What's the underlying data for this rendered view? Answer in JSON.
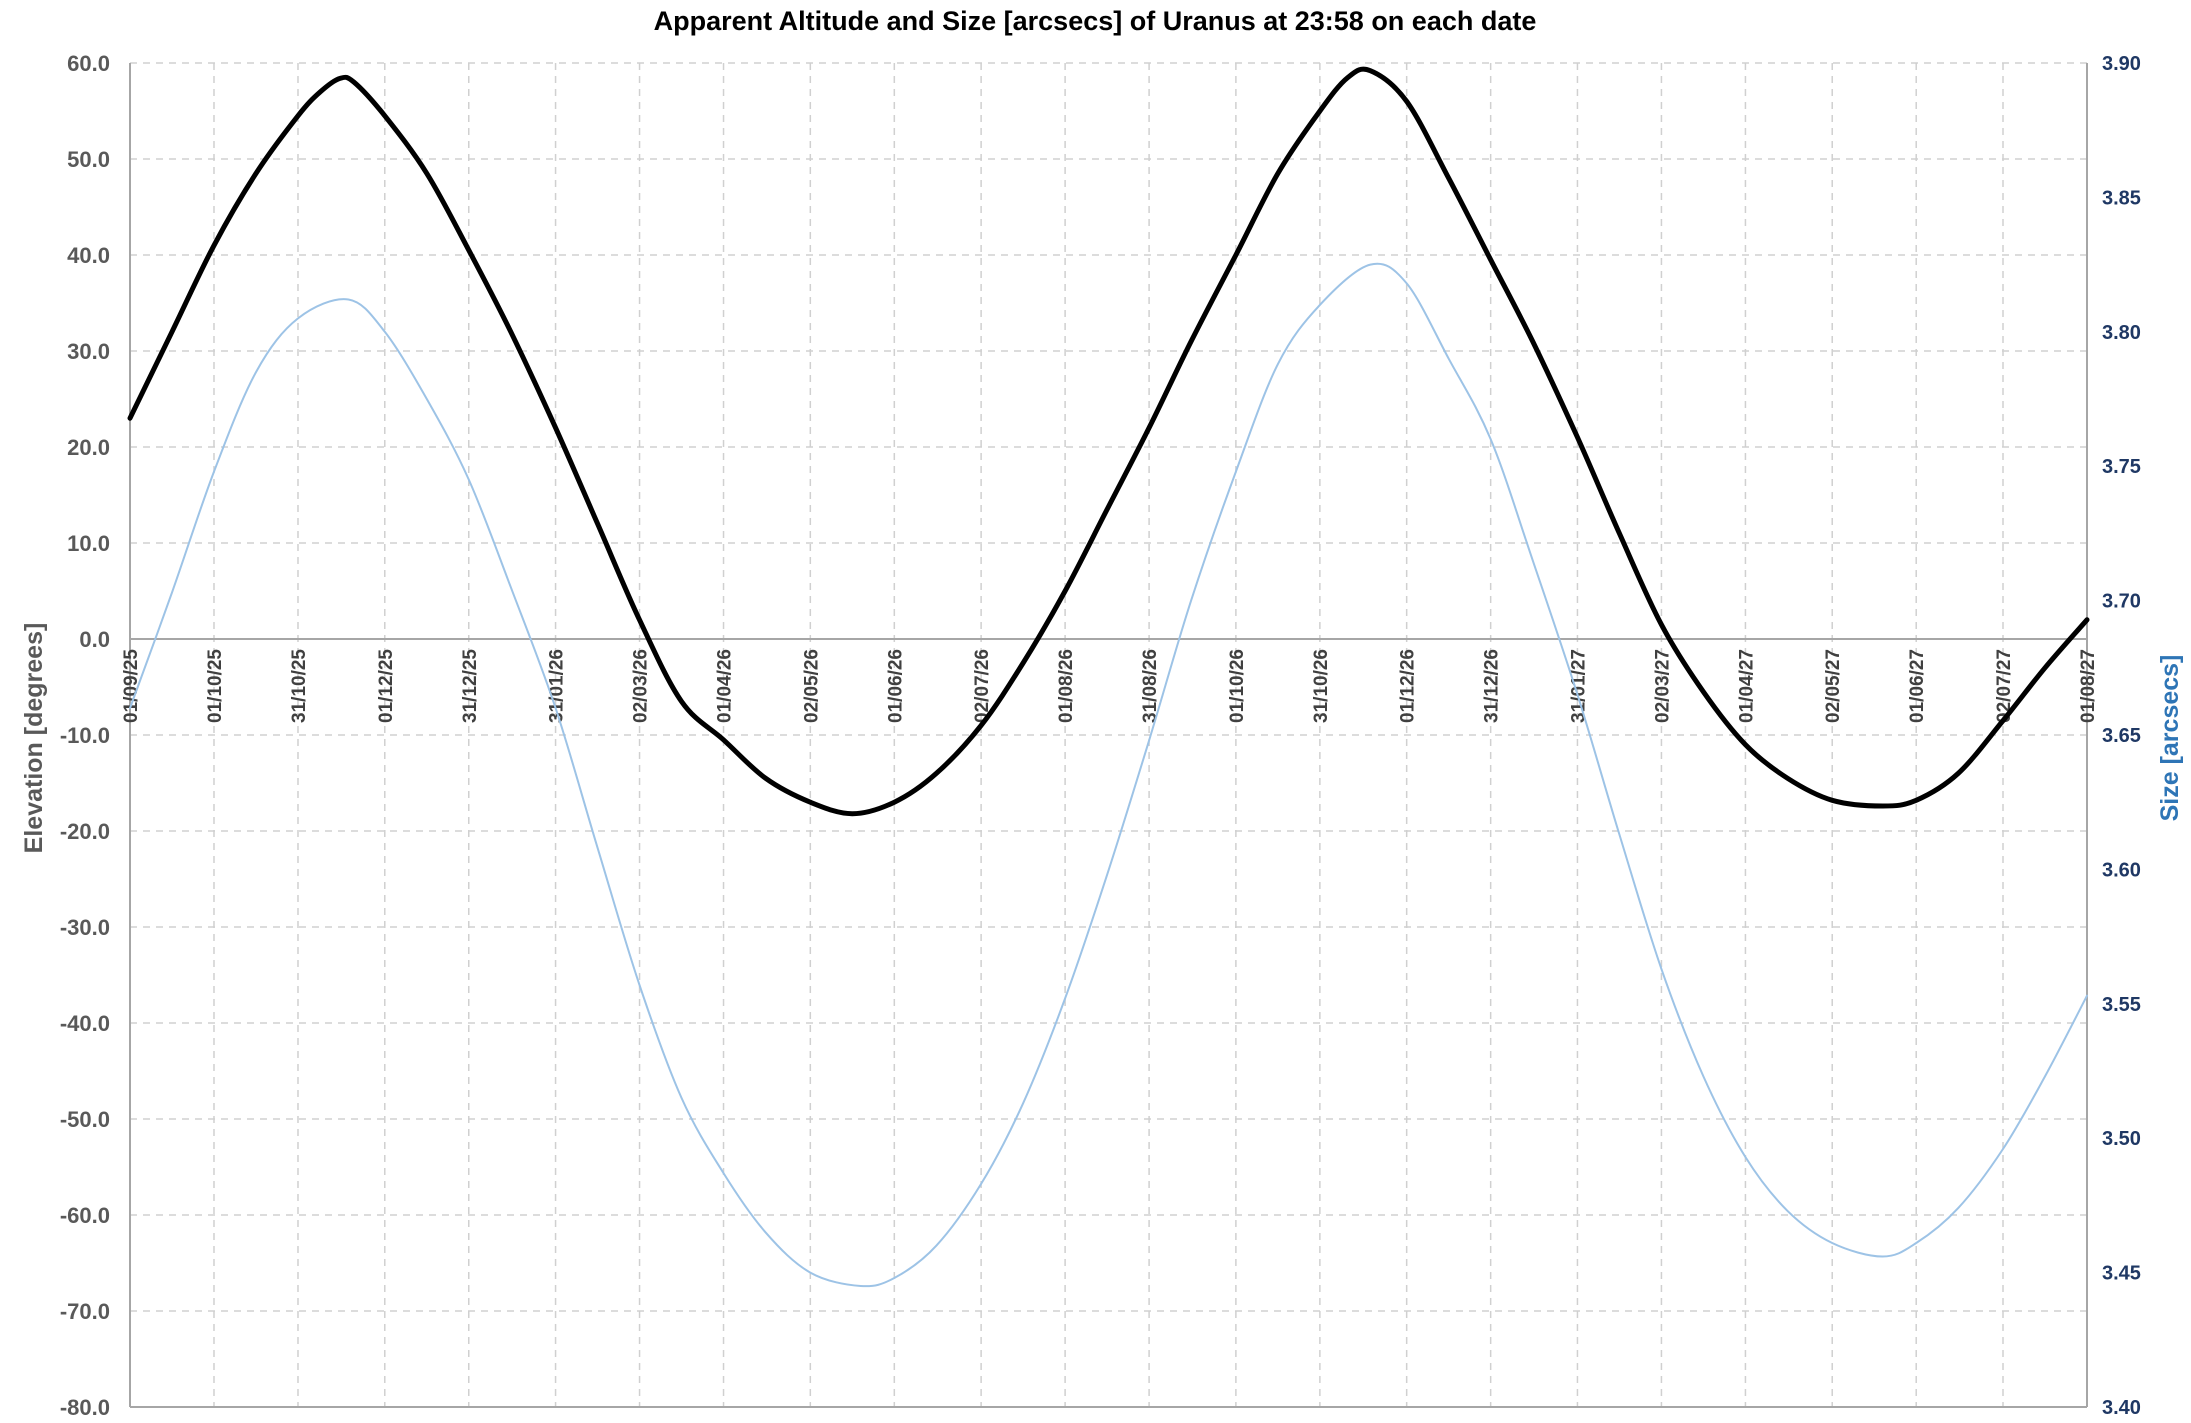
{
  "chart_data": {
    "type": "line",
    "title": "Apparent Altitude and Size [arcsecs] of Uranus at 23:58 on each date",
    "ylabel": "Elevation [degrees]",
    "y2label": "Size [arcsecs]",
    "ylim": [
      -80,
      60
    ],
    "y2lim": [
      3.4,
      3.9
    ],
    "yticks": [
      "60.0",
      "50.0",
      "40.0",
      "30.0",
      "20.0",
      "10.0",
      "0.0",
      "-10.0",
      "-20.0",
      "-30.0",
      "-40.0",
      "-50.0",
      "-60.0",
      "-70.0",
      "-80.0"
    ],
    "y2ticks": [
      "3.90",
      "3.85",
      "3.80",
      "3.75",
      "3.70",
      "3.65",
      "3.60",
      "3.55",
      "3.50",
      "3.45",
      "3.40"
    ],
    "xlim": [
      "2025-09-01",
      "2027-08-01"
    ],
    "xticks": [
      {
        "label": "01/09/25",
        "date": "2025-09-01"
      },
      {
        "label": "01/10/25",
        "date": "2025-10-01"
      },
      {
        "label": "31/10/25",
        "date": "2025-10-31"
      },
      {
        "label": "01/12/25",
        "date": "2025-12-01"
      },
      {
        "label": "31/12/25",
        "date": "2025-12-31"
      },
      {
        "label": "31/01/26",
        "date": "2026-01-31"
      },
      {
        "label": "02/03/26",
        "date": "2026-03-02"
      },
      {
        "label": "01/04/26",
        "date": "2026-04-01"
      },
      {
        "label": "02/05/26",
        "date": "2026-05-02"
      },
      {
        "label": "01/06/26",
        "date": "2026-06-01"
      },
      {
        "label": "02/07/26",
        "date": "2026-07-02"
      },
      {
        "label": "01/08/26",
        "date": "2026-08-01"
      },
      {
        "label": "31/08/26",
        "date": "2026-08-31"
      },
      {
        "label": "01/10/26",
        "date": "2026-10-01"
      },
      {
        "label": "31/10/26",
        "date": "2026-10-31"
      },
      {
        "label": "01/12/26",
        "date": "2026-12-01"
      },
      {
        "label": "31/12/26",
        "date": "2026-12-31"
      },
      {
        "label": "31/01/27",
        "date": "2027-01-31"
      },
      {
        "label": "02/03/27",
        "date": "2027-03-02"
      },
      {
        "label": "01/04/27",
        "date": "2027-04-01"
      },
      {
        "label": "02/05/27",
        "date": "2027-05-02"
      },
      {
        "label": "01/06/27",
        "date": "2027-06-01"
      },
      {
        "label": "02/07/27",
        "date": "2027-07-02"
      },
      {
        "label": "01/08/27",
        "date": "2027-08-01"
      }
    ],
    "grid": true,
    "series": [
      {
        "axis": "left",
        "color": "#000000",
        "points": [
          [
            "2025-09-01",
            23.0
          ],
          [
            "2025-09-16",
            32.0
          ],
          [
            "2025-10-01",
            41.0
          ],
          [
            "2025-10-16",
            48.5
          ],
          [
            "2025-10-31",
            54.5
          ],
          [
            "2025-11-08",
            57.0
          ],
          [
            "2025-11-15",
            58.4
          ],
          [
            "2025-11-20",
            58.0
          ],
          [
            "2025-12-01",
            54.5
          ],
          [
            "2025-12-16",
            48.5
          ],
          [
            "2025-12-31",
            40.5
          ],
          [
            "2026-01-15",
            32.0
          ],
          [
            "2026-01-31",
            22.0
          ],
          [
            "2026-02-15",
            12.0
          ],
          [
            "2026-03-02",
            2.0
          ],
          [
            "2026-03-17",
            -6.5
          ],
          [
            "2026-04-01",
            -10.5
          ],
          [
            "2026-04-16",
            -14.5
          ],
          [
            "2026-05-02",
            -17.0
          ],
          [
            "2026-05-17",
            -18.2
          ],
          [
            "2026-06-01",
            -17.0
          ],
          [
            "2026-06-16",
            -14.0
          ],
          [
            "2026-07-02",
            -9.0
          ],
          [
            "2026-07-17",
            -2.5
          ],
          [
            "2026-08-01",
            5.0
          ],
          [
            "2026-08-16",
            13.5
          ],
          [
            "2026-08-31",
            22.0
          ],
          [
            "2026-09-15",
            31.0
          ],
          [
            "2026-10-01",
            40.0
          ],
          [
            "2026-10-16",
            48.5
          ],
          [
            "2026-10-31",
            55.0
          ],
          [
            "2026-11-10",
            58.5
          ],
          [
            "2026-11-18",
            59.2
          ],
          [
            "2026-12-01",
            56.0
          ],
          [
            "2026-12-16",
            48.0
          ],
          [
            "2026-12-31",
            39.5
          ],
          [
            "2027-01-15",
            31.0
          ],
          [
            "2027-01-31",
            21.0
          ],
          [
            "2027-02-15",
            11.0
          ],
          [
            "2027-03-02",
            1.5
          ],
          [
            "2027-03-17",
            -5.5
          ],
          [
            "2027-04-01",
            -11.0
          ],
          [
            "2027-04-16",
            -14.5
          ],
          [
            "2027-05-02",
            -16.8
          ],
          [
            "2027-05-20",
            -17.4
          ],
          [
            "2027-06-01",
            -16.8
          ],
          [
            "2027-06-16",
            -14.0
          ],
          [
            "2027-07-02",
            -8.5
          ],
          [
            "2027-07-17",
            -3.0
          ],
          [
            "2027-08-01",
            2.0
          ]
        ]
      },
      {
        "axis": "right",
        "color": "#9dc3e6",
        "points": [
          [
            "2025-09-01",
            3.66
          ],
          [
            "2025-09-16",
            3.703
          ],
          [
            "2025-10-01",
            3.748
          ],
          [
            "2025-10-16",
            3.785
          ],
          [
            "2025-10-31",
            3.805
          ],
          [
            "2025-11-18",
            3.812
          ],
          [
            "2025-12-01",
            3.8
          ],
          [
            "2025-12-16",
            3.775
          ],
          [
            "2025-12-31",
            3.745
          ],
          [
            "2026-01-15",
            3.705
          ],
          [
            "2026-01-31",
            3.66
          ],
          [
            "2026-02-15",
            3.608
          ],
          [
            "2026-03-02",
            3.557
          ],
          [
            "2026-03-17",
            3.515
          ],
          [
            "2026-04-01",
            3.487
          ],
          [
            "2026-04-16",
            3.465
          ],
          [
            "2026-05-02",
            3.45
          ],
          [
            "2026-05-20",
            3.445
          ],
          [
            "2026-06-01",
            3.448
          ],
          [
            "2026-06-16",
            3.46
          ],
          [
            "2026-07-02",
            3.483
          ],
          [
            "2026-07-17",
            3.513
          ],
          [
            "2026-08-01",
            3.552
          ],
          [
            "2026-08-16",
            3.598
          ],
          [
            "2026-08-31",
            3.648
          ],
          [
            "2026-09-15",
            3.7
          ],
          [
            "2026-10-01",
            3.748
          ],
          [
            "2026-10-16",
            3.788
          ],
          [
            "2026-10-31",
            3.81
          ],
          [
            "2026-11-18",
            3.825
          ],
          [
            "2026-12-01",
            3.818
          ],
          [
            "2026-12-16",
            3.79
          ],
          [
            "2026-12-31",
            3.76
          ],
          [
            "2027-01-15",
            3.715
          ],
          [
            "2027-01-31",
            3.665
          ],
          [
            "2027-02-15",
            3.613
          ],
          [
            "2027-03-02",
            3.563
          ],
          [
            "2027-03-17",
            3.523
          ],
          [
            "2027-04-01",
            3.493
          ],
          [
            "2027-04-16",
            3.473
          ],
          [
            "2027-05-02",
            3.461
          ],
          [
            "2027-05-20",
            3.456
          ],
          [
            "2027-06-01",
            3.461
          ],
          [
            "2027-06-16",
            3.474
          ],
          [
            "2027-07-02",
            3.496
          ],
          [
            "2027-07-17",
            3.523
          ],
          [
            "2027-08-01",
            3.553
          ]
        ]
      }
    ]
  }
}
